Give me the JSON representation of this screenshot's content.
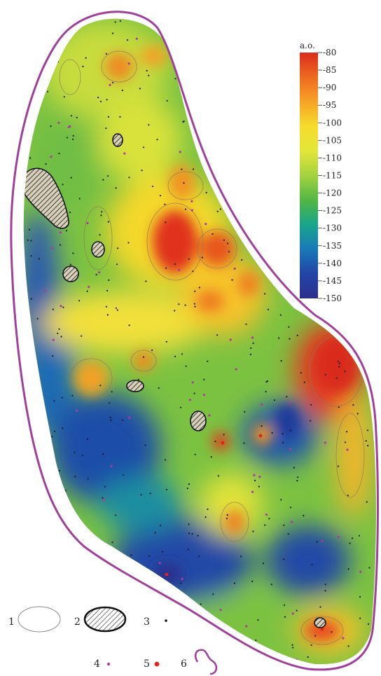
{
  "colors": {
    "outline": "#a0409a",
    "isoline": "#8a7a5a",
    "zone_fill": "#4a4a4a",
    "scale": [
      "#d92b1e",
      "#ee6a1f",
      "#f7a326",
      "#f6dc2c",
      "#e3e63a",
      "#a4d23f",
      "#52b644",
      "#19a68a",
      "#1979b8",
      "#2344a8",
      "#2d2f8c"
    ]
  },
  "colorbar": {
    "unit": "a.o.",
    "ticks": [
      "-80",
      "-85",
      "-90",
      "-95",
      "-100",
      "-105",
      "-110",
      "-115",
      "-120",
      "-125",
      "-130",
      "-135",
      "-140",
      "-145",
      "-150"
    ]
  },
  "legend": [
    {
      "number": "1",
      "symbol": "open-ellipse"
    },
    {
      "number": "2",
      "symbol": "hatched-ellipse"
    },
    {
      "number": "3",
      "symbol": "black-dot"
    },
    {
      "number": "4",
      "symbol": "purple-dot"
    },
    {
      "number": "5",
      "symbol": "red-dot"
    },
    {
      "number": "6",
      "symbol": "purple-outline"
    }
  ]
}
